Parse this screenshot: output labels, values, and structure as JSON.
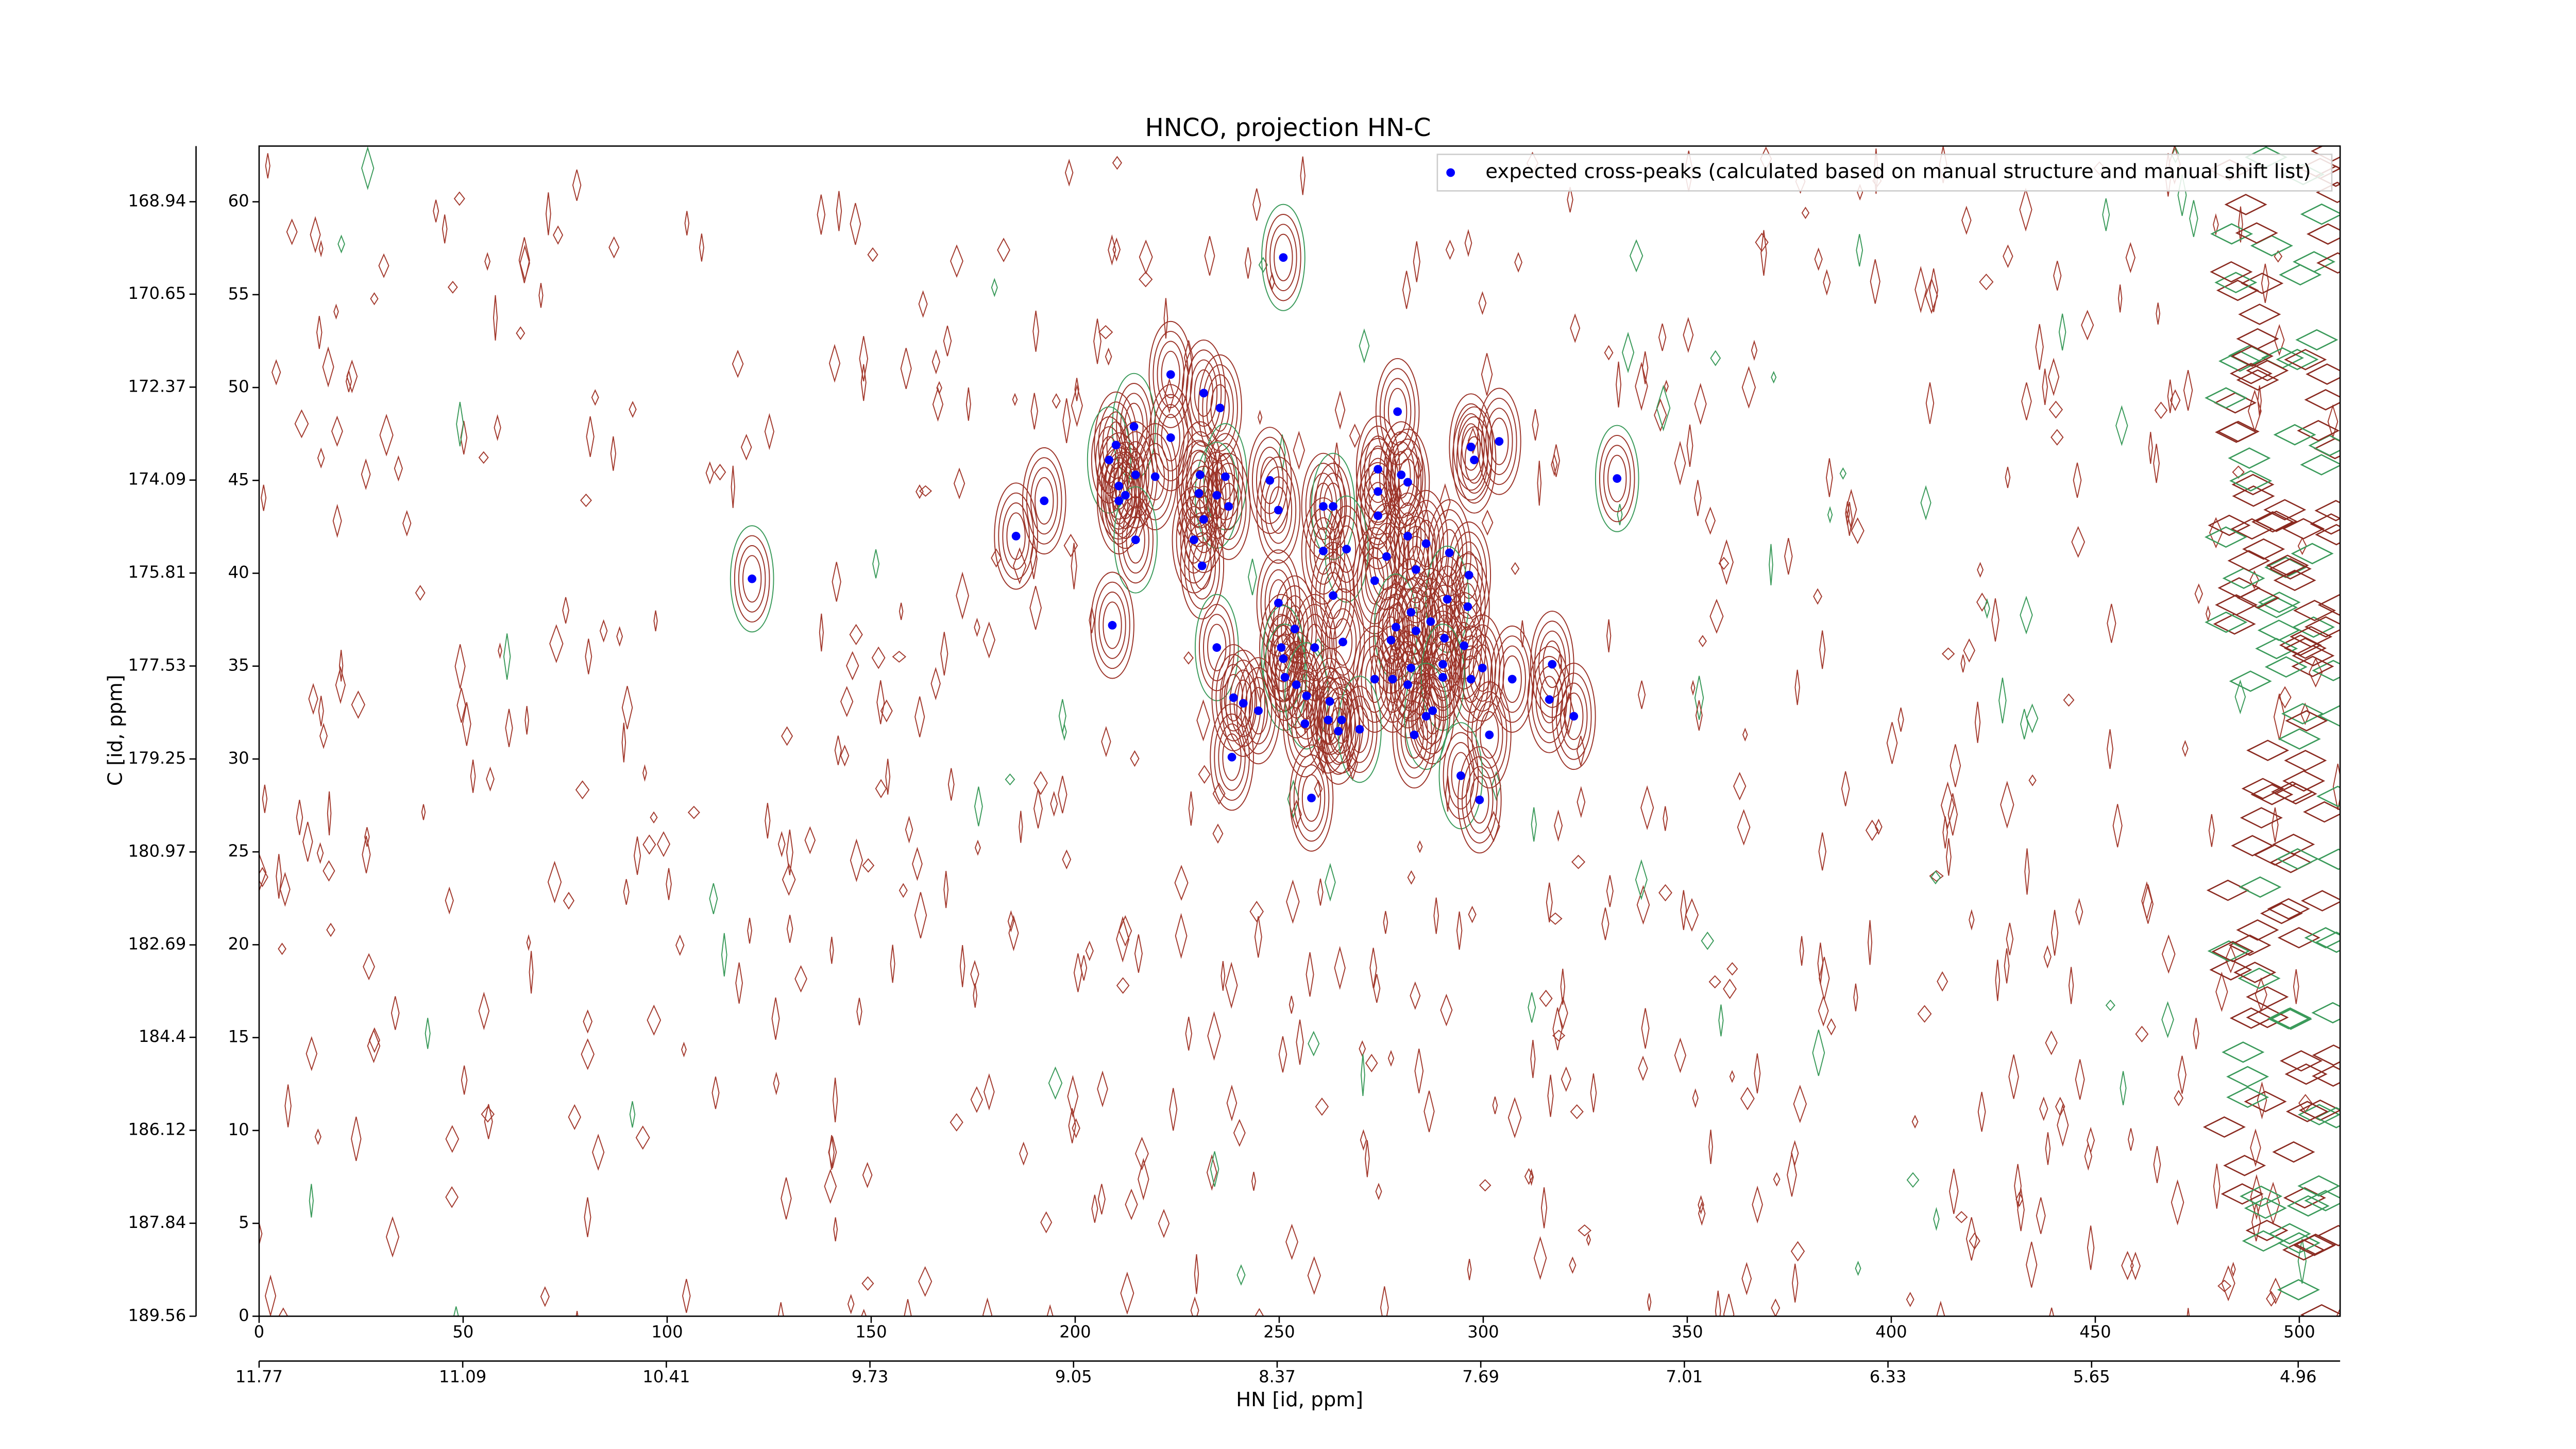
{
  "chart_data": {
    "type": "scatter",
    "title": "HNCO, projection HN-C",
    "xlabel": "HN [id, ppm]",
    "ylabel": "C [id, ppm]",
    "xlim": [
      0,
      510
    ],
    "xticks": [
      0,
      50,
      100,
      150,
      200,
      250,
      300,
      350,
      400,
      450,
      500
    ],
    "ylim": [
      0,
      63
    ],
    "yticks": [
      0,
      5,
      10,
      15,
      20,
      25,
      30,
      35,
      40,
      45,
      50,
      55,
      60
    ],
    "ppm_xlim": [
      11.77,
      4.82
    ],
    "ppm_xticks": [
      11.77,
      11.09,
      10.41,
      9.73,
      9.05,
      8.37,
      7.69,
      7.01,
      6.33,
      5.65,
      4.96
    ],
    "ppm_ylim": [
      189.56,
      167.91
    ],
    "ppm_yticks": [
      189.56,
      187.84,
      186.12,
      184.4,
      182.69,
      180.97,
      179.25,
      177.53,
      175.81,
      174.09,
      172.37,
      170.65,
      168.94
    ],
    "legend": "upper right",
    "series": [
      {
        "name": "expected cross-peaks (calculated based on manual structure and manual shift list)",
        "color": "#0000ff",
        "x": [
          251,
          223.4,
          231.5,
          235.5,
          279,
          214.4,
          223.4,
          303.9,
          297,
          210,
          208.3,
          297.8,
          214.8,
          219.6,
          230.6,
          236.8,
          247.7,
          274.2,
          279.9,
          281.5,
          332.8,
          210.7,
          212.3,
          210.7,
          192.4,
          234.7,
          230.3,
          237.6,
          249.8,
          260.8,
          263.2,
          274.2,
          274.2,
          231.5,
          185.5,
          214.8,
          229.1,
          281.5,
          286,
          291.7,
          266.5,
          260.8,
          231.1,
          276.3,
          283.5,
          120.8,
          273.4,
          296.5,
          249.8,
          263.2,
          291.2,
          296.2,
          282.3,
          209.1,
          253.8,
          278.6,
          287.1,
          283.5,
          265.6,
          277.4,
          234.7,
          250.5,
          258.7,
          290.5,
          295.3,
          251,
          282.3,
          290.1,
          299.8,
          316.9,
          251.4,
          254.2,
          273.4,
          277.8,
          281.5,
          290.1,
          297,
          307.1,
          238.8,
          241.2,
          256.7,
          262.4,
          244.9,
          287.6,
          316.2,
          286,
          322.2,
          256.3,
          262,
          265.3,
          269.7,
          283.1,
          264.5,
          301.5,
          238.4,
          294.5,
          257.9,
          299.1
        ],
        "y": [
          57,
          50.7,
          49.7,
          48.9,
          48.7,
          47.9,
          47.3,
          47.1,
          46.8,
          46.9,
          46.1,
          46.1,
          45.3,
          45.2,
          45.3,
          45.2,
          45,
          45.6,
          45.3,
          44.9,
          45.1,
          44.7,
          44.2,
          43.9,
          43.9,
          44.2,
          44.3,
          43.6,
          43.4,
          43.6,
          43.6,
          44.4,
          43.1,
          42.9,
          42,
          41.8,
          41.8,
          42,
          41.6,
          41.1,
          41.3,
          41.2,
          40.4,
          40.9,
          40.2,
          39.7,
          39.6,
          39.9,
          38.4,
          38.8,
          38.6,
          38.2,
          37.9,
          37.2,
          37,
          37.1,
          37.4,
          36.9,
          36.3,
          36.4,
          36,
          36,
          36,
          36.5,
          36.1,
          35.4,
          34.9,
          35.1,
          34.9,
          35.1,
          34.4,
          34,
          34.3,
          34.3,
          34,
          34.4,
          34.3,
          34.3,
          33.3,
          33,
          33.4,
          33.1,
          32.6,
          32.6,
          33.2,
          32.3,
          32.3,
          31.9,
          32.1,
          32.1,
          31.6,
          31.3,
          31.5,
          31.3,
          30.1,
          29.1,
          27.9,
          27.8
        ]
      }
    ]
  }
}
